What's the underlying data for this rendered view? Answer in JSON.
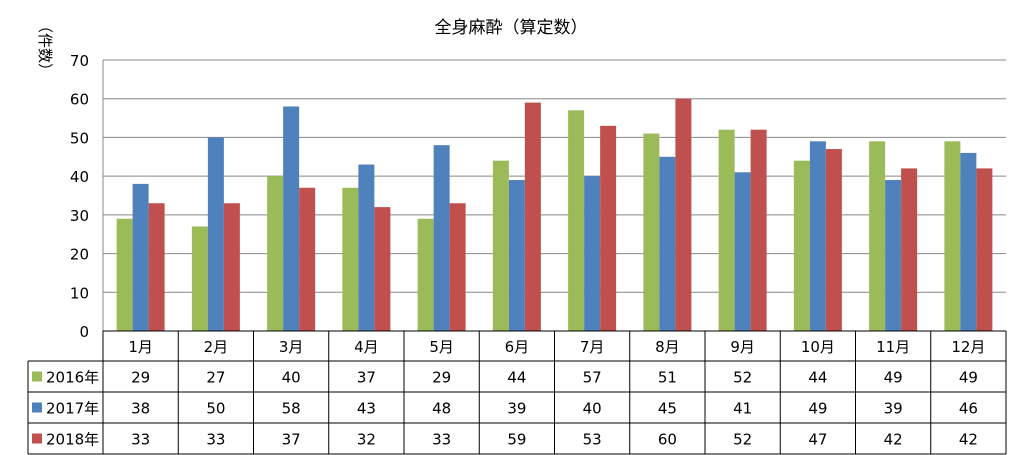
{
  "chart_data": {
    "type": "bar",
    "title": "全身麻酔（算定数）",
    "ylabel": "（件数）",
    "xlabel": "",
    "ylim": [
      0,
      70
    ],
    "yticks": [
      0,
      10,
      20,
      30,
      40,
      50,
      60,
      70
    ],
    "grid": true,
    "legend": "data-table-left",
    "categories": [
      "1月",
      "2月",
      "3月",
      "4月",
      "5月",
      "6月",
      "7月",
      "8月",
      "9月",
      "10月",
      "11月",
      "12月"
    ],
    "series": [
      {
        "name": "2016年",
        "color": "#9BBB59",
        "values": [
          29,
          27,
          40,
          37,
          29,
          44,
          57,
          51,
          52,
          44,
          49,
          49
        ]
      },
      {
        "name": "2017年",
        "color": "#4F81BD",
        "values": [
          38,
          50,
          58,
          43,
          48,
          39,
          40,
          45,
          41,
          49,
          39,
          46
        ]
      },
      {
        "name": "2018年",
        "color": "#C0504D",
        "values": [
          33,
          33,
          37,
          32,
          33,
          59,
          53,
          60,
          52,
          47,
          42,
          42
        ]
      }
    ]
  }
}
